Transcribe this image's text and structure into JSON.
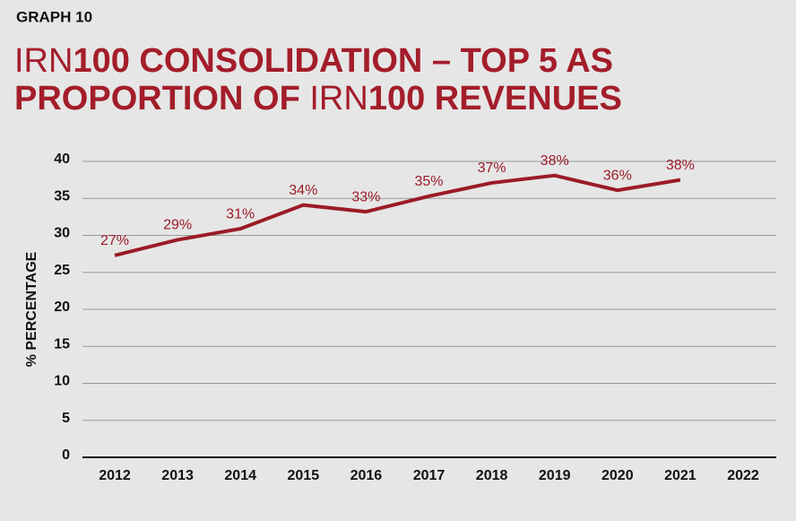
{
  "label": "GRAPH 10",
  "chart_data": {
    "type": "line",
    "title": [
      [
        {
          "text": "IRN",
          "bold": false
        },
        {
          "text": "100  CONSOLIDATION – TOP 5 AS",
          "bold": true
        }
      ],
      [
        {
          "text": "PROPORTION OF ",
          "bold": true
        },
        {
          "text": "IRN",
          "bold": false
        },
        {
          "text": "100 REVENUES",
          "bold": true
        }
      ]
    ],
    "y_label": "% PERCENTAGE",
    "categories": [
      "2012",
      "2013",
      "2014",
      "2015",
      "2016",
      "2017",
      "2018",
      "2019",
      "2020",
      "2021",
      "2022"
    ],
    "values": [
      27.3,
      29.4,
      30.9,
      34.1,
      33.2,
      35.3,
      37.1,
      38.1,
      36.1,
      37.5,
      null
    ],
    "value_labels": [
      "27%",
      "29%",
      "31%",
      "34%",
      "33%",
      "35%",
      "37%",
      "38%",
      "36%",
      "38%",
      null
    ],
    "color": "#9b1b27",
    "ylim": [
      0,
      40
    ],
    "yticks": [
      0,
      5,
      10,
      15,
      20,
      25,
      30,
      35,
      40
    ],
    "grid": true
  }
}
